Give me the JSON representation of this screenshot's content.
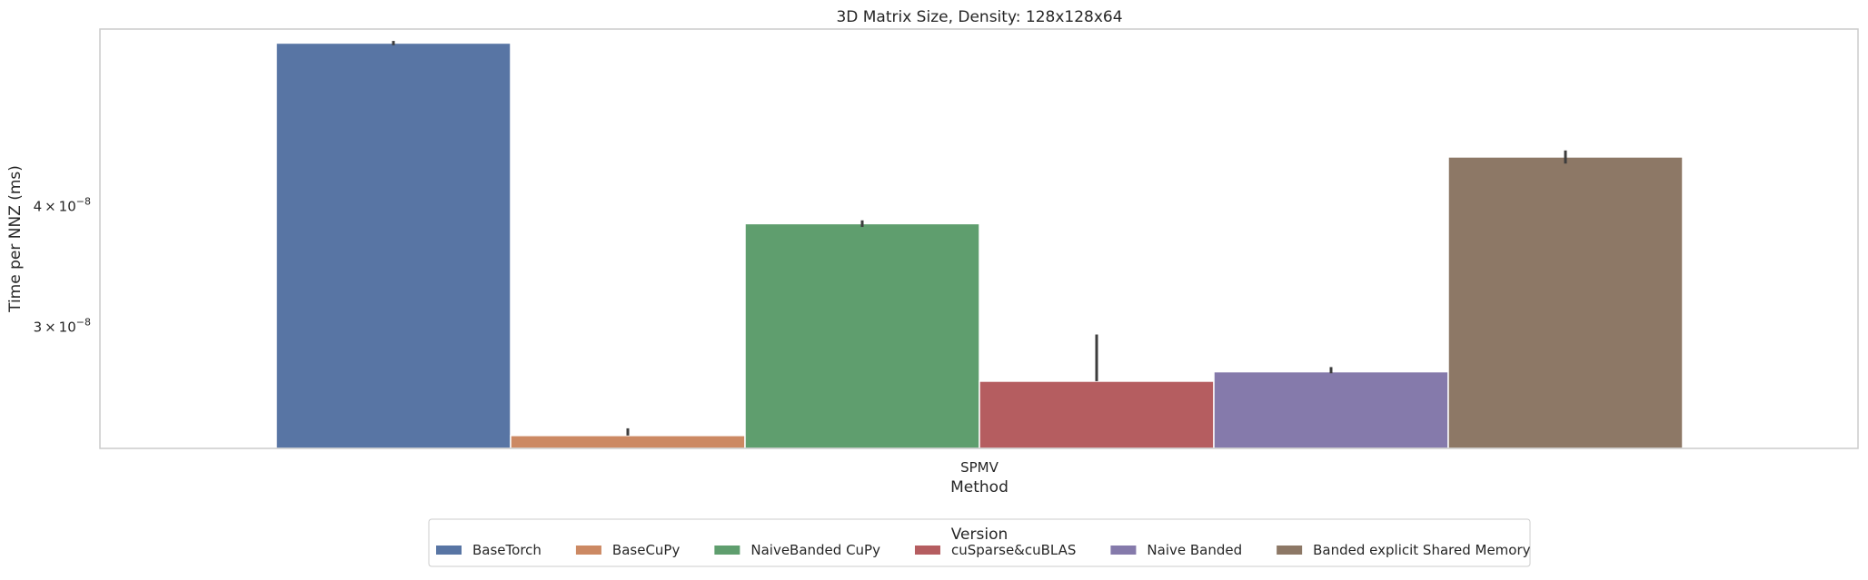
{
  "chart_data": {
    "type": "bar",
    "title": "3D Matrix Size, Density: 128x128x64",
    "xlabel": "Method",
    "ylabel": "Time per NNZ (ms)",
    "yscale": "log",
    "ylim": [
      2.25e-08,
      6.1e-08
    ],
    "yticks": [
      {
        "value": 3e-08,
        "mantissa": "3",
        "exponent": "−8"
      },
      {
        "value": 4e-08,
        "mantissa": "4",
        "exponent": "−8"
      }
    ],
    "categories": [
      "SPMV"
    ],
    "grid": false,
    "legend": {
      "title": "Version",
      "placement": "bottom-center",
      "columns": 6
    },
    "series": [
      {
        "name": "BaseTorch",
        "values": [
          5.9e-08
        ],
        "err": [
          [
            5.87e-08,
            5.93e-08
          ]
        ],
        "color": "#5875a4"
      },
      {
        "name": "BaseCuPy",
        "values": [
          2.32e-08
        ],
        "err": [
          [
            2.32e-08,
            2.36e-08
          ]
        ],
        "color": "#cc8963"
      },
      {
        "name": "NaiveBanded CuPy",
        "values": [
          3.84e-08
        ],
        "err": [
          [
            3.81e-08,
            3.87e-08
          ]
        ],
        "color": "#5f9e6e"
      },
      {
        "name": "cuSparse&cuBLAS",
        "values": [
          2.64e-08
        ],
        "err": [
          [
            2.64e-08,
            2.95e-08
          ]
        ],
        "color": "#b55d60"
      },
      {
        "name": "Naive Banded",
        "values": [
          2.7e-08
        ],
        "err": [
          [
            2.69e-08,
            2.73e-08
          ]
        ],
        "color": "#857aab"
      },
      {
        "name": "Banded explicit Shared Memory",
        "values": [
          4.5e-08
        ],
        "err": [
          [
            4.43e-08,
            4.57e-08
          ]
        ],
        "color": "#8d7866"
      }
    ]
  }
}
